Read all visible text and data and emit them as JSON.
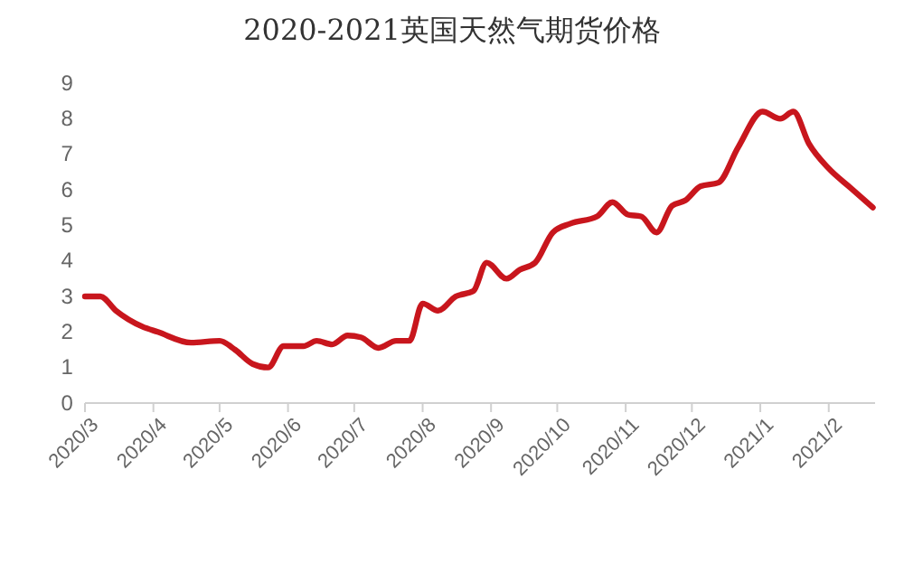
{
  "chart_data": {
    "type": "line",
    "title": "2020-2021英国天然气期货价格",
    "x": [
      "2020-03-01",
      "2020-03-08",
      "2020-03-15",
      "2020-03-27",
      "2020-04-03",
      "2020-04-18",
      "2020-05-01",
      "2020-05-08",
      "2020-05-16",
      "2020-05-23",
      "2020-05-30",
      "2020-06-08",
      "2020-06-14",
      "2020-06-21",
      "2020-06-28",
      "2020-07-04",
      "2020-07-12",
      "2020-07-20",
      "2020-07-26",
      "2020-08-01",
      "2020-08-08",
      "2020-08-16",
      "2020-08-24",
      "2020-08-30",
      "2020-09-08",
      "2020-09-14",
      "2020-09-21",
      "2020-09-29",
      "2020-10-07",
      "2020-10-19",
      "2020-10-26",
      "2020-11-02",
      "2020-11-08",
      "2020-11-15",
      "2020-11-22",
      "2020-11-28",
      "2020-12-05",
      "2020-12-13",
      "2020-12-22",
      "2021-01-02",
      "2021-01-10",
      "2021-01-16",
      "2021-01-23",
      "2021-02-01",
      "2021-02-11",
      "2021-02-21"
    ],
    "series": [
      {
        "color": "#c8161d",
        "values": [
          3.0,
          3.0,
          2.6,
          2.15,
          2.0,
          1.7,
          1.75,
          1.5,
          1.1,
          1.0,
          1.6,
          1.6,
          1.75,
          1.65,
          1.9,
          1.85,
          1.55,
          1.75,
          1.75,
          2.8,
          2.6,
          3.0,
          3.15,
          3.95,
          3.5,
          3.75,
          3.95,
          4.8,
          5.05,
          5.25,
          5.65,
          5.3,
          5.25,
          4.8,
          5.55,
          5.7,
          6.1,
          6.2,
          7.2,
          8.2,
          8.0,
          8.2,
          7.3,
          6.6,
          6.05,
          5.5
        ]
      }
    ],
    "xlim": [
      "2020-03-01",
      "2021-02-22"
    ],
    "xticks": [
      {
        "value": "2020-03-01",
        "label": "2020/3"
      },
      {
        "value": "2020-04-01",
        "label": "2020/4"
      },
      {
        "value": "2020-05-01",
        "label": "2020/5"
      },
      {
        "value": "2020-06-01",
        "label": "2020/6"
      },
      {
        "value": "2020-07-01",
        "label": "2020/7"
      },
      {
        "value": "2020-08-01",
        "label": "2020/8"
      },
      {
        "value": "2020-09-01",
        "label": "2020/9"
      },
      {
        "value": "2020-10-01",
        "label": "2020/10"
      },
      {
        "value": "2020-11-01",
        "label": "2020/11"
      },
      {
        "value": "2020-12-01",
        "label": "2020/12"
      },
      {
        "value": "2021-01-01",
        "label": "2021/1"
      },
      {
        "value": "2021-02-01",
        "label": "2021/2"
      }
    ],
    "ylim": [
      0,
      9
    ],
    "yticks": [
      0,
      1,
      2,
      3,
      4,
      5,
      6,
      7,
      8,
      9
    ],
    "grid": false,
    "marker": "none",
    "line_style": "solid"
  }
}
